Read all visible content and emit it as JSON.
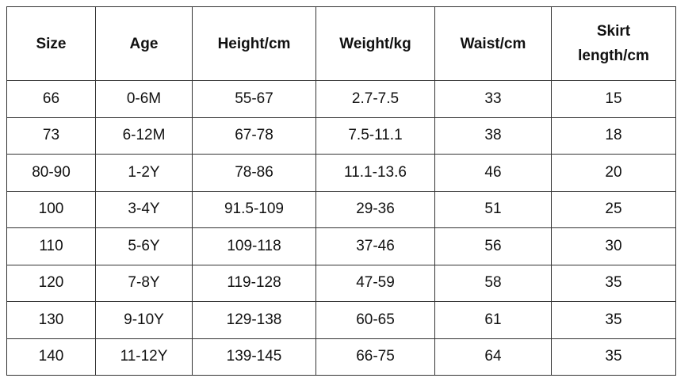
{
  "table": {
    "header": [
      "Size",
      "Age",
      "Height/cm",
      "Weight/kg",
      "Waist/cm",
      "Skirt length/cm"
    ],
    "rows": [
      [
        "66",
        "0-6M",
        "55-67",
        "2.7-7.5",
        "33",
        "15"
      ],
      [
        "73",
        "6-12M",
        "67-78",
        "7.5-11.1",
        "38",
        "18"
      ],
      [
        "80-90",
        "1-2Y",
        "78-86",
        "11.1-13.6",
        "46",
        "20"
      ],
      [
        "100",
        "3-4Y",
        "91.5-109",
        "29-36",
        "51",
        "25"
      ],
      [
        "110",
        "5-6Y",
        "109-118",
        "37-46",
        "56",
        "30"
      ],
      [
        "120",
        "7-8Y",
        "119-128",
        "47-59",
        "58",
        "35"
      ],
      [
        "130",
        "9-10Y",
        "129-138",
        "60-65",
        "61",
        "35"
      ],
      [
        "140",
        "11-12Y",
        "139-145",
        "66-75",
        "64",
        "35"
      ]
    ]
  }
}
